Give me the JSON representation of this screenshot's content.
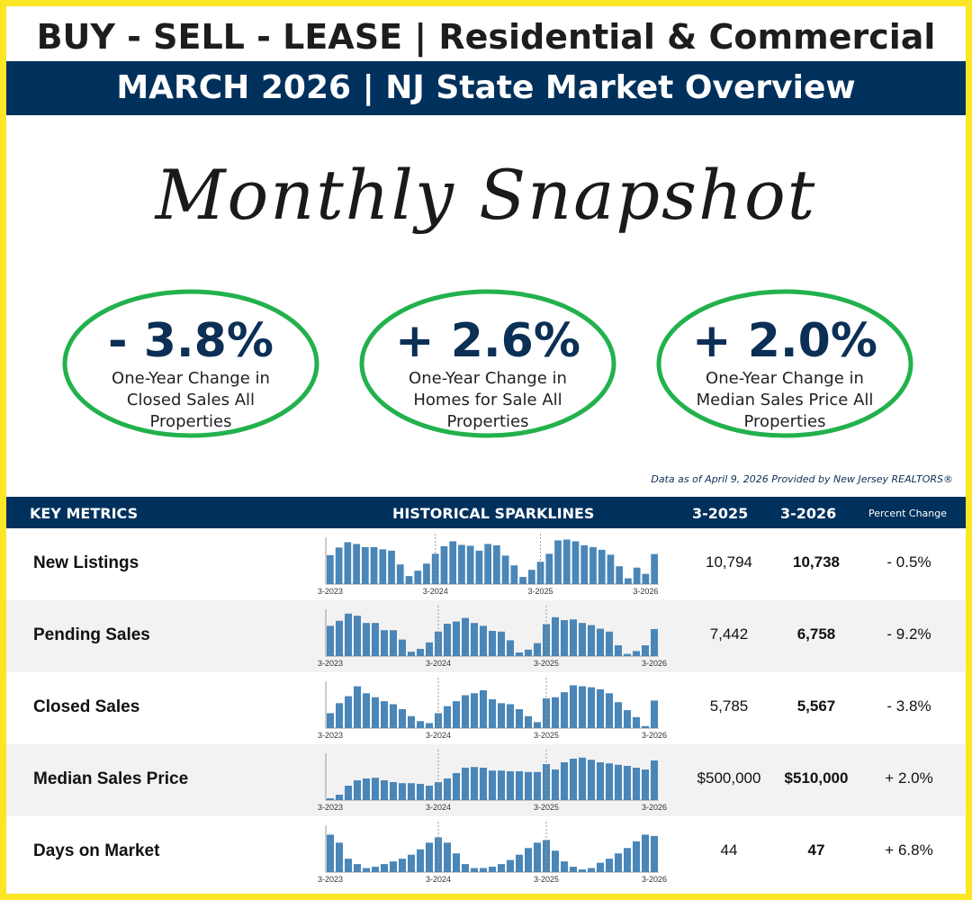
{
  "header": {
    "title": "BUY - SELL - LEASE | Residential & Commercial",
    "subtitle": "MARCH 2026 | NJ State Market Overview",
    "script": "Monthly Snapshot"
  },
  "highlights": [
    {
      "value": "- 3.8%",
      "label": "One-Year Change in Closed Sales All Properties"
    },
    {
      "value": "+ 2.6%",
      "label": "One-Year Change in Homes for Sale All Properties"
    },
    {
      "value": "+ 2.0%",
      "label": "One-Year Change in Median Sales Price All Properties"
    }
  ],
  "note": "Data as of April 9, 2026 Provided by New Jersey REALTORS®",
  "table": {
    "headers": [
      "KEY METRICS",
      "HISTORICAL SPARKLINES",
      "3-2025",
      "3-2026",
      "Percent Change"
    ],
    "sparkline_labels": [
      "3-2023",
      "3-2024",
      "3-2025",
      "3-2026"
    ],
    "rows": [
      {
        "metric": "New Listings",
        "prior": "10,794",
        "current": "10,738",
        "change": "- 0.5%",
        "sparkline": {
          "ylim": [
            4000,
            14500
          ],
          "values": [
            10500,
            12200,
            13400,
            13000,
            12300,
            12300,
            11800,
            11500,
            8400,
            5800,
            7000,
            8600,
            10800,
            12500,
            13600,
            12800,
            12600,
            11500,
            13000,
            12700,
            10400,
            8200,
            5600,
            7200,
            9000,
            10794,
            13800,
            14000,
            13600,
            12700,
            12300,
            11700,
            10600,
            8000,
            5300,
            7700,
            6300,
            10738
          ]
        }
      },
      {
        "metric": "Pending Sales",
        "prior": "7,442",
        "current": "6,758",
        "change": "- 9.2%",
        "sparkline": {
          "ylim": [
            3000,
            9500
          ],
          "values": [
            7200,
            7900,
            8900,
            8600,
            7600,
            7600,
            6600,
            6600,
            5300,
            3600,
            4000,
            4900,
            6400,
            7500,
            7800,
            8300,
            7600,
            7200,
            6500,
            6400,
            5200,
            3500,
            3900,
            4800,
            7442,
            8400,
            8000,
            8100,
            7600,
            7300,
            6800,
            6400,
            4500,
            3300,
            3700,
            4500,
            6758
          ]
        }
      },
      {
        "metric": "Closed Sales",
        "prior": "5,785",
        "current": "5,567",
        "change": "- 3.8%",
        "sparkline": {
          "ylim": [
            2800,
            7500
          ],
          "values": [
            4300,
            5300,
            6000,
            7000,
            6300,
            5900,
            5500,
            5200,
            4700,
            4000,
            3500,
            3300,
            4300,
            5000,
            5500,
            6100,
            6300,
            6600,
            5700,
            5300,
            5200,
            4700,
            4000,
            3400,
            5785,
            5900,
            6400,
            7100,
            7000,
            6900,
            6700,
            6300,
            5400,
            4600,
            3900,
            3000,
            5567
          ]
        }
      },
      {
        "metric": "Median Sales Price",
        "prior": "$500,000",
        "current": "$510,000",
        "change": "+ 2.0%",
        "sparkline": {
          "ylim": [
            400000,
            530000
          ],
          "values": [
            405000,
            415000,
            440000,
            455000,
            460000,
            462000,
            455000,
            450000,
            447000,
            447000,
            445000,
            440000,
            450000,
            460000,
            475000,
            490000,
            492000,
            490000,
            482000,
            482000,
            480000,
            480000,
            478000,
            478000,
            500000,
            485000,
            505000,
            515000,
            518000,
            512000,
            505000,
            502000,
            498000,
            495000,
            490000,
            485000,
            510000
          ]
        }
      },
      {
        "metric": "Days on Market",
        "prior": "44",
        "current": "47",
        "change": "+ 6.8%",
        "sparkline": {
          "ylim": [
            20,
            55
          ],
          "values": [
            48,
            42,
            30,
            26,
            23,
            24,
            26,
            28,
            30,
            33,
            37,
            42,
            46,
            42,
            34,
            26,
            23,
            23,
            24,
            26,
            29,
            33,
            38,
            42,
            44,
            36,
            28,
            24,
            22,
            23,
            27,
            30,
            34,
            38,
            43,
            48,
            47
          ]
        }
      }
    ]
  }
}
